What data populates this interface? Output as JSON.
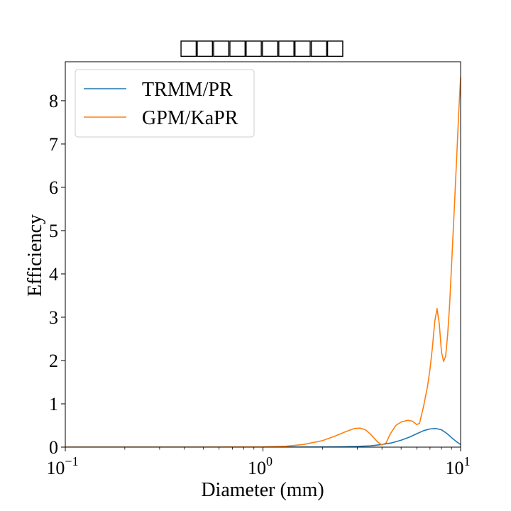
{
  "chart_data": {
    "type": "line",
    "title": "□□□□□□□□□□",
    "xlabel": "Diameter (mm)",
    "ylabel": "Efficiency",
    "x_scale": "log",
    "xlim": [
      0.1,
      10
    ],
    "ylim": [
      0,
      8.9
    ],
    "x_ticks": [
      {
        "value": 0.1,
        "base": "10",
        "exp": "−1"
      },
      {
        "value": 1,
        "base": "10",
        "exp": "0"
      },
      {
        "value": 10,
        "base": "10",
        "exp": "1"
      }
    ],
    "y_ticks": [
      0,
      1,
      2,
      3,
      4,
      5,
      6,
      7,
      8
    ],
    "grid": false,
    "legend_position": "top-left",
    "series": [
      {
        "name": "TRMM/PR",
        "color": "#1f77b4",
        "x": [
          0.1,
          0.5,
          1.0,
          1.5,
          2.0,
          2.5,
          3.0,
          3.5,
          4.0,
          4.5,
          5.0,
          5.5,
          6.0,
          6.5,
          7.0,
          7.5,
          8.0,
          8.5,
          9.0,
          9.5,
          10.0
        ],
        "y": [
          0,
          0,
          0.001,
          0.002,
          0.004,
          0.008,
          0.015,
          0.03,
          0.06,
          0.1,
          0.16,
          0.23,
          0.31,
          0.38,
          0.42,
          0.43,
          0.4,
          0.32,
          0.22,
          0.13,
          0.06
        ]
      },
      {
        "name": "GPM/KaPR",
        "color": "#ff7f0e",
        "x": [
          0.1,
          0.5,
          1.0,
          1.3,
          1.6,
          2.0,
          2.3,
          2.6,
          2.9,
          3.1,
          3.3,
          3.5,
          3.8,
          4.0,
          4.2,
          4.4,
          4.7,
          5.0,
          5.4,
          5.7,
          6.0,
          6.2,
          6.5,
          6.8,
          7.0,
          7.2,
          7.4,
          7.6,
          7.8,
          8.0,
          8.2,
          8.4,
          8.6,
          8.8,
          9.0,
          9.2,
          9.4,
          9.6,
          9.8,
          10.0
        ],
        "y": [
          0,
          0,
          0.005,
          0.02,
          0.06,
          0.15,
          0.25,
          0.35,
          0.43,
          0.44,
          0.4,
          0.3,
          0.12,
          0.05,
          0.1,
          0.3,
          0.5,
          0.58,
          0.62,
          0.6,
          0.52,
          0.55,
          0.95,
          1.4,
          1.8,
          2.3,
          2.9,
          3.2,
          2.85,
          2.2,
          1.98,
          2.1,
          2.6,
          3.3,
          4.2,
          5.1,
          6.0,
          6.9,
          7.8,
          8.55
        ]
      }
    ]
  }
}
